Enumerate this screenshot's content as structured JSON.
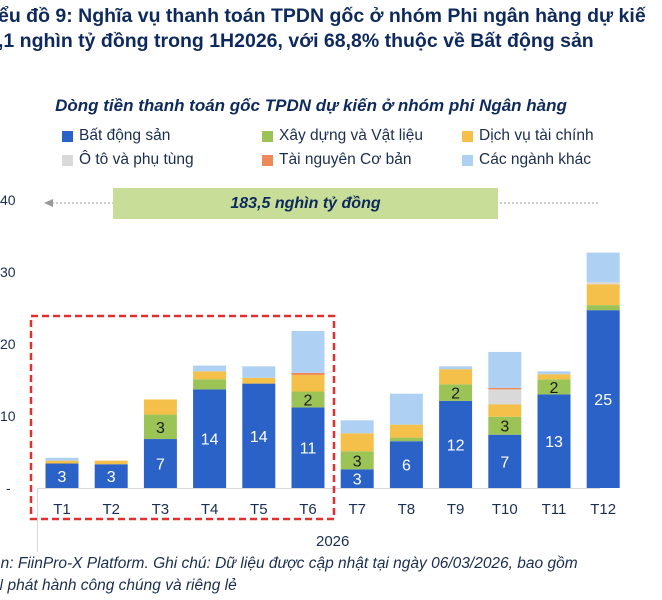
{
  "title_lines": [
    "ểu đồ 9: Nghĩa vụ thanh toán TPDN gốc ở nhóm Phi ngân hàng dự kiế",
    ",1 nghìn tỷ đồng trong 1H2026, với 68,8% thuộc về Bất động sản"
  ],
  "annotation": {
    "banner_text": "183,5 nghìn tỷ đồng",
    "banner_color": "#c8de98"
  },
  "highlight_box": {
    "from_category": "T1",
    "to_category": "T6",
    "color": "#e03030"
  },
  "year_label": "2026",
  "note_lines": [
    "ồn: FiinPro-X Platform. Ghi chú: Dữ liệu được cập nhật tại ngày 06/03/2026, bao gồm",
    "N phát hành công chúng và riêng lẻ"
  ],
  "chart_data": {
    "type": "bar",
    "stacked": true,
    "title": "Dòng tiền thanh toán gốc TPDN dự kiến ở nhóm phi Ngân hàng",
    "xlabel": "2026",
    "ylabel": "",
    "ylim": [
      0,
      40
    ],
    "yticks": [
      {
        "value": 0,
        "label": "-"
      },
      {
        "value": 10,
        "label": "10"
      },
      {
        "value": 20,
        "label": "20"
      },
      {
        "value": 30,
        "label": "30"
      },
      {
        "value": 40,
        "label": "40"
      }
    ],
    "grid": false,
    "legend_position": "top",
    "categories": [
      "T1",
      "T2",
      "T3",
      "T4",
      "T5",
      "T6",
      "T7",
      "T8",
      "T9",
      "T10",
      "T11",
      "T12"
    ],
    "series": [
      {
        "name": "Bất động sản",
        "color": "#2b62c8",
        "label_color": "#ffffff",
        "values": [
          3.4,
          3.3,
          6.8,
          13.7,
          14.5,
          11.2,
          2.6,
          6.5,
          12.1,
          7.4,
          13.0,
          24.7
        ],
        "labels": [
          "3",
          "3",
          "7",
          "14",
          "14",
          "11",
          "3",
          "6",
          "12",
          "7",
          "13",
          "25"
        ]
      },
      {
        "name": "Xây dựng và Vật liệu",
        "color": "#9bc356",
        "label_color": "#1a1a1a",
        "values": [
          0,
          0,
          3.4,
          1.4,
          0,
          2.2,
          2.5,
          0.5,
          2.3,
          2.5,
          2.1,
          0.7
        ],
        "labels": [
          "",
          "",
          "3",
          "",
          "",
          "2",
          "3",
          "",
          "2",
          "3",
          "2",
          ""
        ]
      },
      {
        "name": "Dịch vụ tài chính",
        "color": "#f5c04a",
        "label_color": "#1a1a1a",
        "values": [
          0.4,
          0.5,
          2.1,
          1.1,
          0.8,
          2.3,
          2.5,
          1.8,
          2.1,
          1.7,
          0.7,
          2.9
        ],
        "labels": [
          "",
          "",
          "",
          "",
          "",
          "",
          "",
          "",
          "",
          "",
          "",
          ""
        ]
      },
      {
        "name": "Ô tô và phụ tùng",
        "color": "#d9d9d9",
        "label_color": "#1a1a1a",
        "values": [
          0,
          0,
          0,
          0,
          0,
          0,
          0,
          0,
          0,
          2.1,
          0,
          0.3
        ],
        "labels": [
          "",
          "",
          "",
          "",
          "",
          "",
          "",
          "",
          "",
          "",
          "",
          ""
        ]
      },
      {
        "name": "Tài nguyên Cơ bản",
        "color": "#ee8a5a",
        "label_color": "#1a1a1a",
        "values": [
          0,
          0,
          0,
          0,
          0,
          0.3,
          0,
          0,
          0,
          0.2,
          0,
          0
        ],
        "labels": [
          "",
          "",
          "",
          "",
          "",
          "",
          "",
          "",
          "",
          "",
          "",
          ""
        ]
      },
      {
        "name": "Các ngành khác",
        "color": "#aed0f2",
        "label_color": "#1a1a1a",
        "values": [
          0.4,
          0,
          0,
          0.8,
          1.6,
          5.8,
          1.8,
          4.3,
          0.4,
          5.0,
          0.4,
          4.1
        ],
        "labels": [
          "",
          "",
          "",
          "",
          "",
          "",
          "",
          "",
          "",
          "",
          "",
          ""
        ]
      }
    ]
  }
}
